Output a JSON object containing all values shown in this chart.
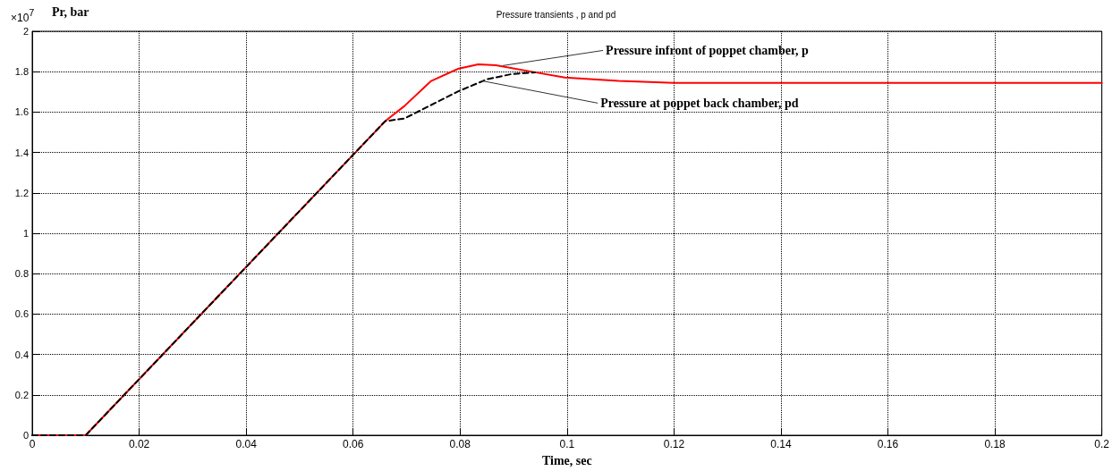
{
  "chart_data": {
    "type": "line",
    "title": "Pressure transients , p and pd",
    "xlabel": "Time, sec",
    "ylabel": "Pr, bar",
    "annotations": [
      "×10$^{7}$",
      {
        "text": "Pressure infront of poppet chamber, p",
        "x": 0.088,
        "y": 1.83
      },
      {
        "text": "Pressure at poppet back chamber, pd",
        "x": 0.084,
        "y": 1.755
      }
    ],
    "series": [
      {
        "color": "#ff0000",
        "line_style": "solid",
        "x": [
          0,
          0.01,
          0.066,
          0.0696,
          0.0746,
          0.0796,
          0.0834,
          0.0867,
          0.094,
          0.0996,
          0.1096,
          0.12,
          0.2
        ],
        "values": [
          0,
          0,
          1.555,
          1.63,
          1.754,
          1.814,
          1.836,
          1.832,
          1.797,
          1.771,
          1.754,
          1.745,
          1.745
        ]
      },
      {
        "color": "#000000",
        "line_style": "dashed",
        "x": [
          0,
          0.01,
          0.066,
          0.0696,
          0.0746,
          0.0796,
          0.085,
          0.0896,
          0.094
        ],
        "values": [
          0,
          0,
          1.555,
          1.568,
          1.635,
          1.702,
          1.762,
          1.788,
          1.797
        ]
      }
    ],
    "xlim": [
      0,
      0.2
    ],
    "xticks": [
      0,
      0.02,
      0.04,
      0.06,
      0.08,
      0.1,
      0.12,
      0.14,
      0.16,
      0.18,
      0.2
    ],
    "ylim": [
      0,
      2
    ],
    "yticks": [
      0,
      0.2,
      0.4,
      0.6,
      0.8,
      1,
      1.2,
      1.4,
      1.6,
      1.8,
      2
    ],
    "grid": true,
    "marker": "none"
  }
}
